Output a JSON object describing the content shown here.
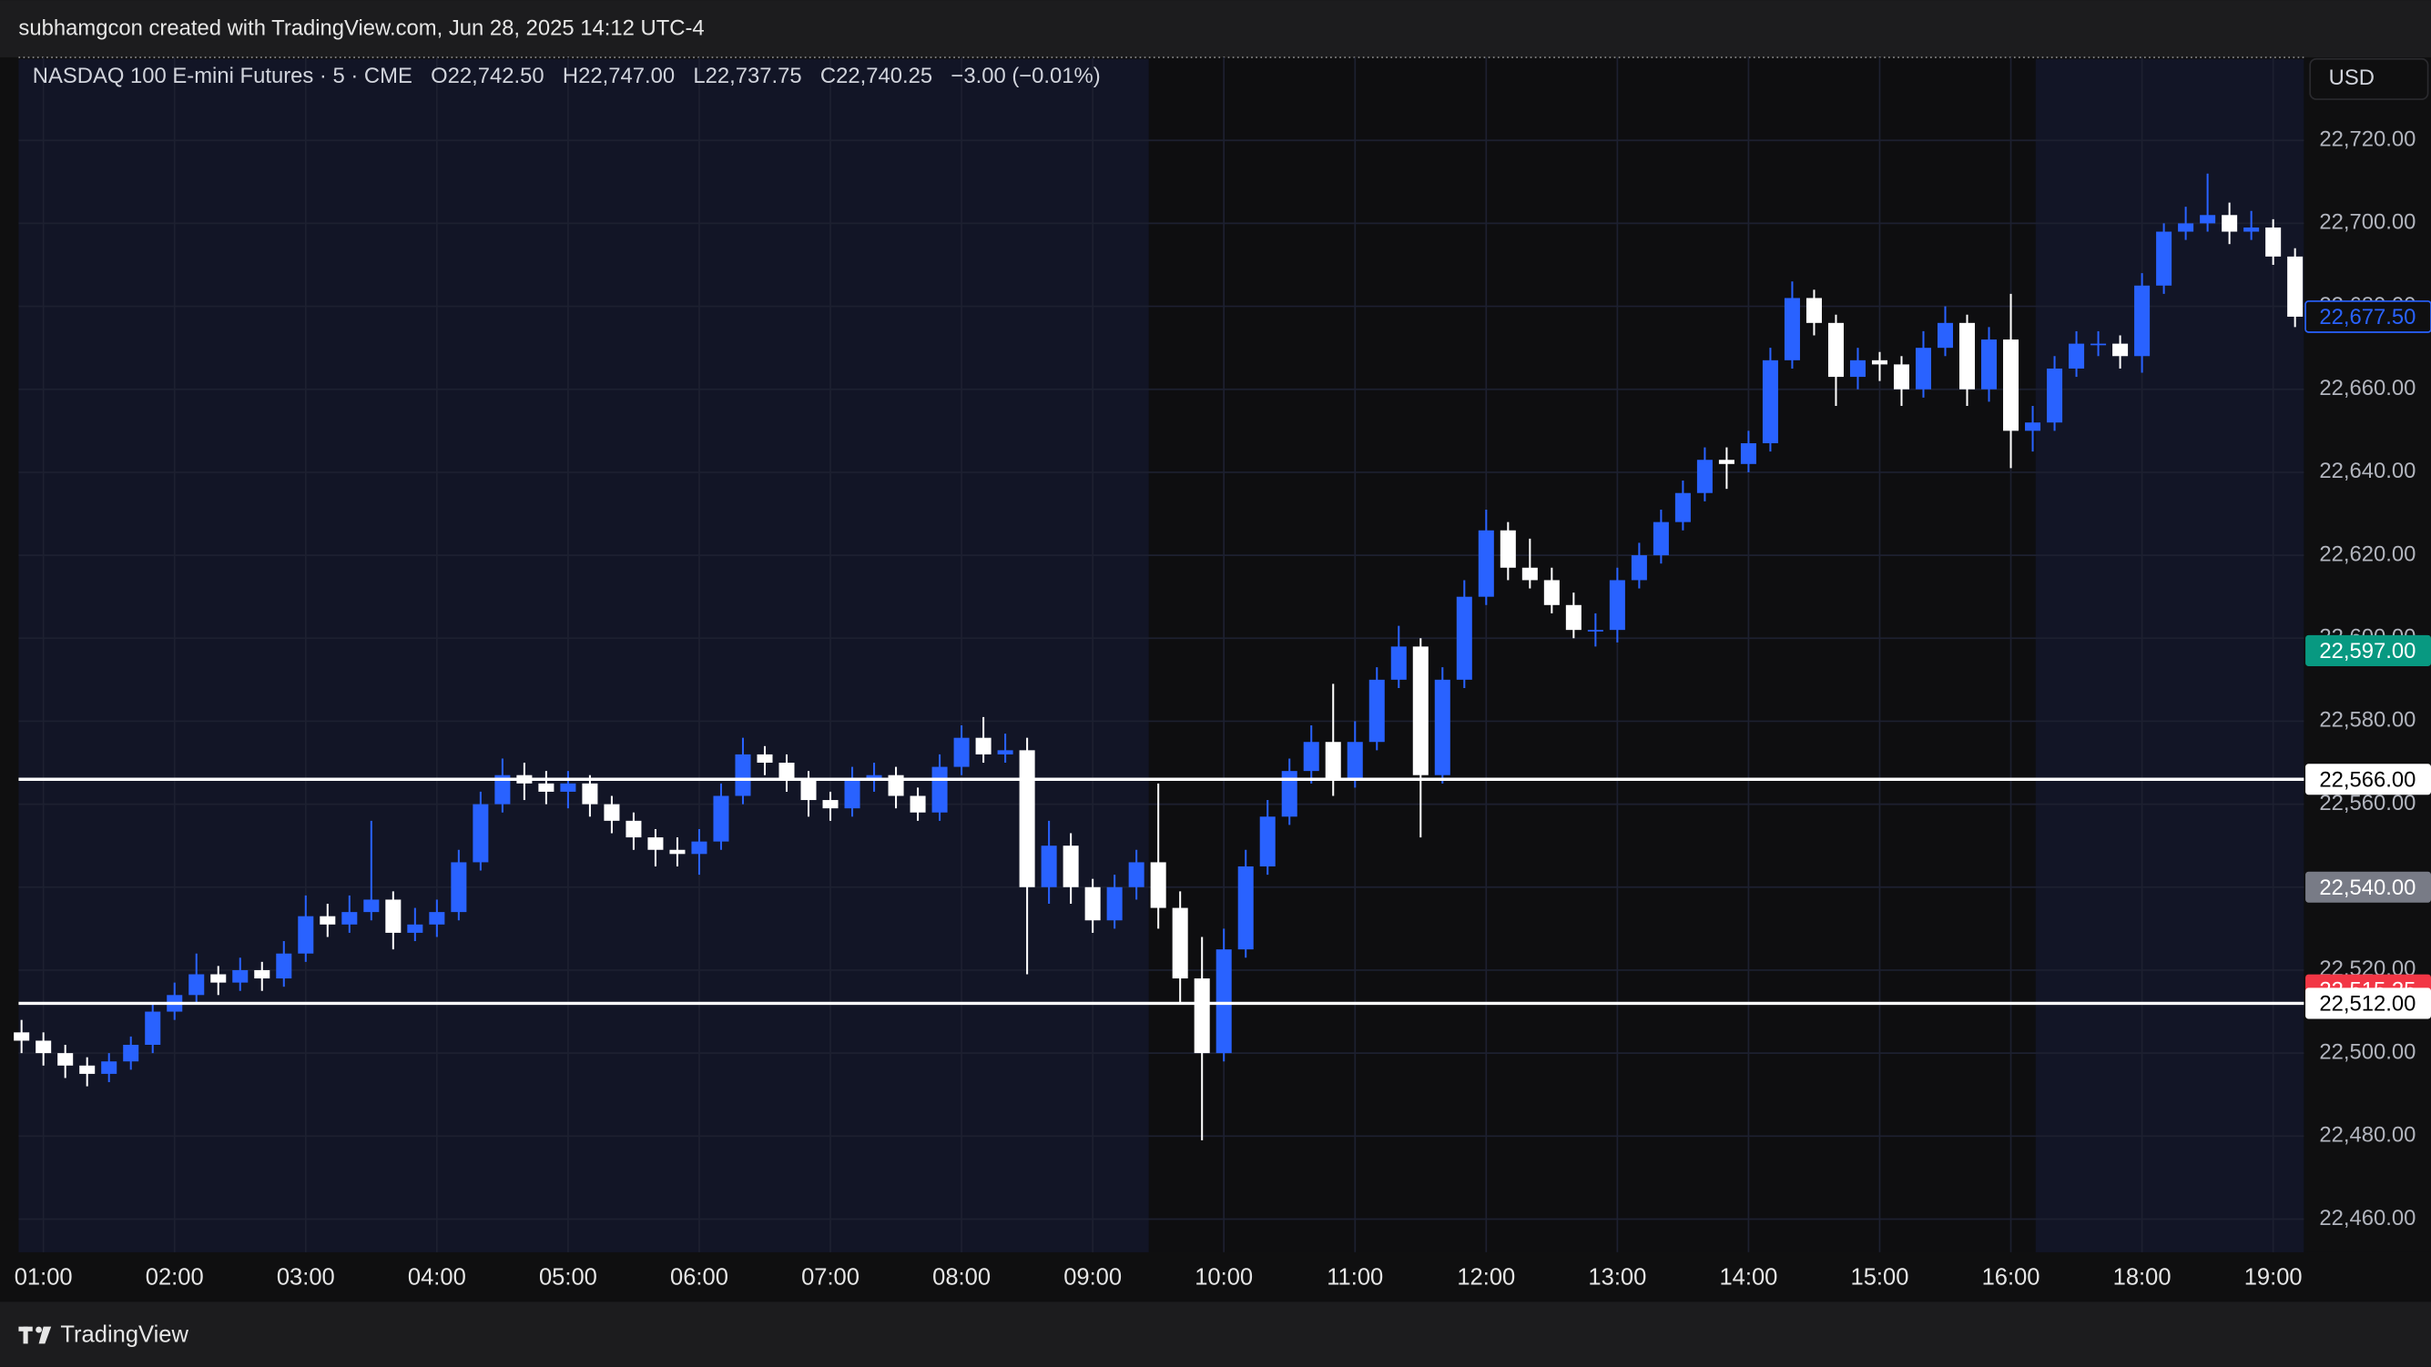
{
  "header": {
    "caption": "subhamgcon created with TradingView.com, Jun 28, 2025 14:12 UTC-4"
  },
  "legend": {
    "symbol": "NASDAQ 100 E-mini Futures · 5 · CME",
    "open_label": "O",
    "open": "22,742.50",
    "high_label": "H",
    "high": "22,747.00",
    "low_label": "L",
    "low": "22,737.75",
    "close_label": "C",
    "close": "22,740.25",
    "change": "−3.00 (−0.01%)"
  },
  "footer": {
    "brand": "TradingView"
  },
  "chart_data": {
    "type": "candlestick",
    "currency": "USD",
    "up_color": "#2962ff",
    "down_color": "#ffffff",
    "grid": true,
    "x": [
      "00:50",
      "01:00",
      "01:10",
      "01:20",
      "01:30",
      "01:40",
      "01:50",
      "02:00",
      "02:10",
      "02:20",
      "02:30",
      "02:40",
      "02:50",
      "03:00",
      "03:10",
      "03:20",
      "03:30",
      "03:40",
      "03:50",
      "04:00",
      "04:10",
      "04:20",
      "04:30",
      "04:40",
      "04:50",
      "05:00",
      "05:10",
      "05:20",
      "05:30",
      "05:40",
      "05:50",
      "06:00",
      "06:10",
      "06:20",
      "06:30",
      "06:40",
      "06:50",
      "07:00",
      "07:10",
      "07:20",
      "07:30",
      "07:40",
      "07:50",
      "08:00",
      "08:10",
      "08:20",
      "08:30",
      "08:40",
      "08:50",
      "09:00",
      "09:10",
      "09:20",
      "09:30",
      "09:40",
      "09:50",
      "10:00",
      "10:10",
      "10:20",
      "10:30",
      "10:40",
      "10:50",
      "11:00",
      "11:10",
      "11:20",
      "11:30",
      "11:40",
      "11:50",
      "12:00",
      "12:10",
      "12:20",
      "12:30",
      "12:40",
      "12:50",
      "13:00",
      "13:10",
      "13:20",
      "13:30",
      "13:40",
      "13:50",
      "14:00",
      "14:10",
      "14:20",
      "14:30",
      "14:40",
      "14:50",
      "15:00",
      "15:10",
      "15:20",
      "15:30",
      "15:40",
      "15:50",
      "16:00",
      "16:10",
      "16:20",
      "16:30",
      "16:40",
      "16:50",
      "18:00",
      "18:10",
      "18:20",
      "18:30",
      "18:40",
      "18:50",
      "19:00",
      "19:10"
    ],
    "open": [
      22505,
      22503,
      22500,
      22497,
      22495,
      22498,
      22502,
      22510,
      22514,
      22519,
      22517,
      22520,
      22518,
      22524,
      22533,
      22531,
      22534,
      22537,
      22529,
      22531,
      22534,
      22546,
      22560,
      22567,
      22565,
      22563,
      22565,
      22560,
      22556,
      22552,
      22549,
      22548,
      22551,
      22562,
      22572,
      22570,
      22566,
      22561,
      22559,
      22566,
      22567,
      22562,
      22558,
      22569,
      22576,
      22572,
      22573,
      22540,
      22550,
      22540,
      22532,
      22540,
      22546,
      22535,
      22518,
      22500,
      22525,
      22545,
      22557,
      22568,
      22575,
      22566,
      22575,
      22590,
      22598,
      22567,
      22590,
      22610,
      22626,
      22617,
      22614,
      22608,
      22602,
      22602,
      22614,
      22620,
      22628,
      22635,
      22643,
      22642,
      22647,
      22667,
      22682,
      22676,
      22663,
      22667,
      22666,
      22660,
      22670,
      22676,
      22660,
      22672,
      22650,
      22652,
      22665,
      22671,
      22671,
      22668,
      22685,
      22698,
      22700,
      22702,
      22698,
      22699,
      22692
    ],
    "high": [
      22508,
      22505,
      22502,
      22499,
      22500,
      22504,
      22512,
      22517,
      22524,
      22521,
      22523,
      22522,
      22527,
      22538,
      22536,
      22538,
      22556,
      22539,
      22535,
      22537,
      22549,
      22563,
      22571,
      22570,
      22568,
      22568,
      22567,
      22562,
      22558,
      22554,
      22552,
      22554,
      22565,
      22576,
      22574,
      22572,
      22568,
      22563,
      22569,
      22570,
      22569,
      22564,
      22572,
      22579,
      22581,
      22577,
      22576,
      22556,
      22553,
      22542,
      22543,
      22549,
      22565,
      22539,
      22528,
      22530,
      22549,
      22561,
      22571,
      22579,
      22589,
      22580,
      22593,
      22603,
      22600,
      22593,
      22614,
      22631,
      22628,
      22624,
      22617,
      22611,
      22606,
      22617,
      22623,
      22631,
      22638,
      22646,
      22646,
      22650,
      22670,
      22686,
      22684,
      22678,
      22670,
      22669,
      22668,
      22674,
      22680,
      22678,
      22675,
      22683,
      22656,
      22668,
      22674,
      22674,
      22673,
      22688,
      22700,
      22704,
      22712,
      22705,
      22703,
      22701,
      22694
    ],
    "low": [
      22500,
      22497,
      22494,
      22492,
      22493,
      22496,
      22500,
      22508,
      22512,
      22514,
      22515,
      22515,
      22516,
      22522,
      22528,
      22529,
      22532,
      22525,
      22527,
      22528,
      22532,
      22544,
      22558,
      22561,
      22560,
      22559,
      22557,
      22553,
      22549,
      22545,
      22545,
      22543,
      22549,
      22560,
      22567,
      22563,
      22557,
      22556,
      22557,
      22563,
      22559,
      22556,
      22556,
      22567,
      22570,
      22570,
      22519,
      22536,
      22536,
      22529,
      22530,
      22537,
      22530,
      22512,
      22479,
      22498,
      22523,
      22543,
      22555,
      22565,
      22562,
      22564,
      22573,
      22588,
      22552,
      22565,
      22588,
      22608,
      22614,
      22612,
      22606,
      22600,
      22598,
      22599,
      22612,
      22618,
      22626,
      22633,
      22636,
      22640,
      22645,
      22665,
      22673,
      22656,
      22660,
      22662,
      22656,
      22658,
      22668,
      22656,
      22657,
      22641,
      22645,
      22650,
      22663,
      22668,
      22665,
      22664,
      22683,
      22696,
      22698,
      22695,
      22696,
      22690,
      22675
    ],
    "close": [
      22503,
      22500,
      22497,
      22495,
      22498,
      22502,
      22510,
      22514,
      22519,
      22517,
      22520,
      22518,
      22524,
      22533,
      22531,
      22534,
      22537,
      22529,
      22531,
      22534,
      22546,
      22560,
      22567,
      22565,
      22563,
      22565,
      22560,
      22556,
      22552,
      22549,
      22548,
      22551,
      22562,
      22572,
      22570,
      22566,
      22561,
      22559,
      22566,
      22567,
      22562,
      22558,
      22569,
      22576,
      22572,
      22573,
      22540,
      22550,
      22540,
      22532,
      22540,
      22546,
      22535,
      22518,
      22500,
      22525,
      22545,
      22557,
      22568,
      22575,
      22566,
      22575,
      22590,
      22598,
      22567,
      22590,
      22610,
      22626,
      22617,
      22614,
      22608,
      22602,
      22602,
      22614,
      22620,
      22628,
      22635,
      22643,
      22642,
      22647,
      22667,
      22682,
      22676,
      22663,
      22667,
      22666,
      22660,
      22670,
      22676,
      22660,
      22672,
      22650,
      22652,
      22665,
      22671,
      22671,
      22668,
      22685,
      22698,
      22700,
      22702,
      22698,
      22699,
      22692,
      22677.5
    ],
    "xticks": [
      "01:00",
      "02:00",
      "03:00",
      "04:00",
      "05:00",
      "06:00",
      "07:00",
      "08:00",
      "09:00",
      "10:00",
      "11:00",
      "12:00",
      "13:00",
      "14:00",
      "15:00",
      "16:00",
      "18:00",
      "19:00"
    ],
    "ylim": [
      22452,
      22740
    ],
    "yticks": [
      {
        "value": 22460,
        "label": "22,460.00"
      },
      {
        "value": 22480,
        "label": "22,480.00"
      },
      {
        "value": 22500,
        "label": "22,500.00"
      },
      {
        "value": 22520,
        "label": "22,520.00"
      },
      {
        "value": 22540,
        "label": "22,540.00"
      },
      {
        "value": 22560,
        "label": "22,560.00"
      },
      {
        "value": 22580,
        "label": "22,580.00"
      },
      {
        "value": 22600,
        "label": "22,600.00"
      },
      {
        "value": 22620,
        "label": "22,620.00"
      },
      {
        "value": 22640,
        "label": "22,640.00"
      },
      {
        "value": 22660,
        "label": "22,660.00"
      },
      {
        "value": 22680,
        "label": "22,680.00"
      },
      {
        "value": 22700,
        "label": "22,700.00"
      },
      {
        "value": 22720,
        "label": "22,720.00"
      }
    ],
    "horizontal_lines": [
      {
        "value": 22566,
        "color": "#ffffff"
      },
      {
        "value": 22512,
        "color": "#ffffff"
      }
    ],
    "price_labels": [
      {
        "value": 22677.5,
        "label": "22,677.50",
        "style": "outline",
        "color": "#2962ff"
      },
      {
        "value": 22597,
        "label": "22,597.00",
        "style": "fill",
        "color": "#089981"
      },
      {
        "value": 22566,
        "label": "22,566.00",
        "style": "fill",
        "color": "#ffffff"
      },
      {
        "value": 22540,
        "label": "22,540.00",
        "style": "fill",
        "color": "#787b86"
      },
      {
        "value": 22515.25,
        "label": "22,515.25",
        "style": "fill",
        "color": "#f23645"
      },
      {
        "value": 22512,
        "label": "22,512.00",
        "style": "fill",
        "color": "#ffffff"
      }
    ]
  }
}
